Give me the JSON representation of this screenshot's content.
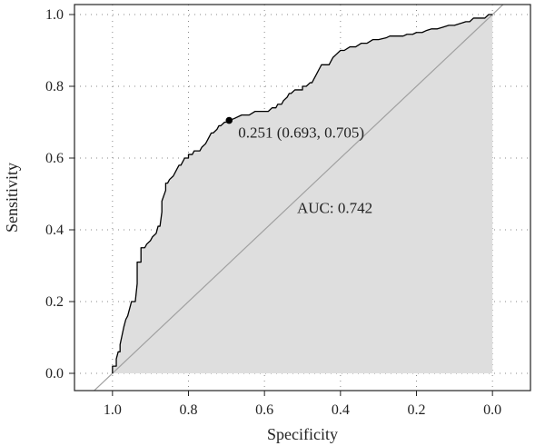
{
  "chart_data": {
    "type": "line",
    "xlabel": "Specificity",
    "ylabel": "Sensitivity",
    "x_reversed": true,
    "xlim": [
      1.1,
      -0.1
    ],
    "ylim": [
      0.0,
      1.0
    ],
    "x_ticks": [
      1.0,
      0.8,
      0.6,
      0.4,
      0.2,
      0.0
    ],
    "x_tick_labels": [
      "1.0",
      "0.8",
      "0.6",
      "0.4",
      "0.2",
      "0.0"
    ],
    "y_ticks": [
      0.0,
      0.2,
      0.4,
      0.6,
      0.8,
      1.0
    ],
    "y_tick_labels": [
      "0.0",
      "0.2",
      "0.4",
      "0.6",
      "0.8",
      "1.0"
    ],
    "grid": true,
    "auc_shaded": true,
    "colors": {
      "fill": "#dedede",
      "curve": "#000000",
      "diagonal": "#a0a0a0",
      "grid": "#888888"
    },
    "series": [
      {
        "x": [
          1.0,
          1.0,
          0.99,
          0.99,
          0.985,
          0.98,
          0.98,
          0.97,
          0.965,
          0.96,
          0.955,
          0.95,
          0.94,
          0.935,
          0.935,
          0.925,
          0.925,
          0.915,
          0.91,
          0.9,
          0.895,
          0.885,
          0.88,
          0.875,
          0.87,
          0.87,
          0.86,
          0.86,
          0.855,
          0.855,
          0.85,
          0.84,
          0.835,
          0.83,
          0.825,
          0.82,
          0.815,
          0.81,
          0.8,
          0.8,
          0.79,
          0.785,
          0.77,
          0.765,
          0.755,
          0.745,
          0.74,
          0.735,
          0.725,
          0.72,
          0.715,
          0.705,
          0.7,
          0.695,
          0.693,
          0.68,
          0.66,
          0.64,
          0.625,
          0.61,
          0.6,
          0.59,
          0.58,
          0.57,
          0.565,
          0.555,
          0.55,
          0.54,
          0.535,
          0.53,
          0.52,
          0.5,
          0.5,
          0.49,
          0.48,
          0.475,
          0.47,
          0.465,
          0.46,
          0.455,
          0.45,
          0.44,
          0.43,
          0.425,
          0.42,
          0.41,
          0.4,
          0.39,
          0.375,
          0.36,
          0.345,
          0.33,
          0.315,
          0.3,
          0.28,
          0.27,
          0.25,
          0.235,
          0.225,
          0.21,
          0.2,
          0.185,
          0.175,
          0.16,
          0.145,
          0.13,
          0.115,
          0.1,
          0.085,
          0.07,
          0.06,
          0.05,
          0.03,
          0.02,
          0.01,
          0.0
        ],
        "y": [
          0.0,
          0.02,
          0.02,
          0.04,
          0.06,
          0.06,
          0.08,
          0.13,
          0.15,
          0.16,
          0.18,
          0.2,
          0.2,
          0.25,
          0.31,
          0.31,
          0.35,
          0.35,
          0.36,
          0.37,
          0.38,
          0.39,
          0.41,
          0.41,
          0.45,
          0.48,
          0.51,
          0.53,
          0.53,
          0.53,
          0.54,
          0.55,
          0.56,
          0.57,
          0.58,
          0.58,
          0.59,
          0.6,
          0.6,
          0.61,
          0.61,
          0.62,
          0.62,
          0.63,
          0.64,
          0.66,
          0.67,
          0.67,
          0.68,
          0.69,
          0.69,
          0.7,
          0.7,
          0.705,
          0.705,
          0.71,
          0.72,
          0.72,
          0.73,
          0.73,
          0.73,
          0.73,
          0.74,
          0.74,
          0.75,
          0.75,
          0.76,
          0.77,
          0.78,
          0.78,
          0.79,
          0.79,
          0.8,
          0.8,
          0.81,
          0.81,
          0.82,
          0.83,
          0.84,
          0.85,
          0.86,
          0.86,
          0.86,
          0.87,
          0.88,
          0.89,
          0.9,
          0.9,
          0.91,
          0.91,
          0.92,
          0.92,
          0.93,
          0.93,
          0.935,
          0.94,
          0.94,
          0.94,
          0.945,
          0.945,
          0.95,
          0.95,
          0.955,
          0.96,
          0.96,
          0.965,
          0.97,
          0.97,
          0.975,
          0.98,
          0.98,
          0.99,
          0.99,
          0.99,
          1.0,
          1.0
        ]
      }
    ],
    "highlight_point": {
      "x": 0.693,
      "y": 0.705,
      "label": "0.251 (0.693, 0.705)"
    },
    "auc_label": "AUC: 0.742"
  }
}
